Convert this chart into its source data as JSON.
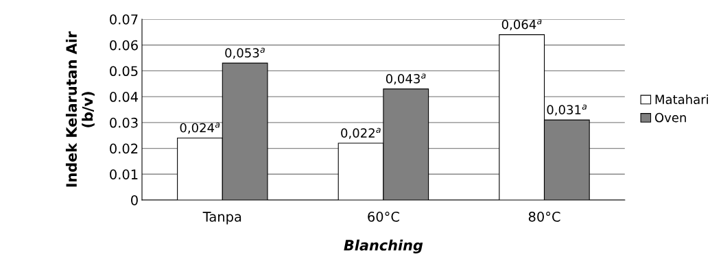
{
  "chart_data": {
    "type": "bar",
    "xlabel": "Blanching",
    "ylabel": "Indek Kelarutan Air\n(b/v)",
    "categories": [
      "Tanpa",
      "60°C",
      "80°C"
    ],
    "series": [
      {
        "name": "Matahari",
        "color": "#ffffff",
        "values": [
          0.024,
          0.022,
          0.064
        ],
        "value_labels": [
          "0,024$^{a}$",
          "0,022$^{a}$",
          "0,064$^{a}$"
        ]
      },
      {
        "name": "Oven",
        "color": "#808080",
        "values": [
          0.053,
          0.043,
          0.031
        ],
        "value_labels": [
          "0,053$^{a}$",
          "0,043$^{a}$",
          "0,031$^{a}$"
        ]
      }
    ],
    "ylim": [
      0,
      0.07
    ],
    "yticks": [
      0,
      0.01,
      0.02,
      0.03,
      0.04,
      0.05,
      0.06,
      0.07
    ],
    "grid": "y",
    "legend": "right"
  }
}
